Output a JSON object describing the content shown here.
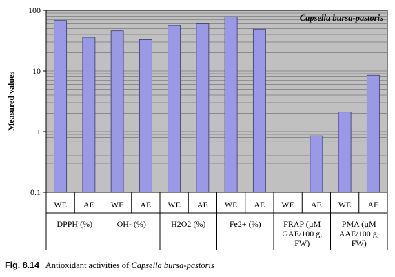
{
  "chart_data": {
    "type": "bar",
    "title": "Capsella bursa-pastoris",
    "ylabel": "Measured values",
    "yscale": "log",
    "ylim": [
      0.1,
      100
    ],
    "yticks": [
      "0.1",
      "1",
      "10",
      "100"
    ],
    "grid": true,
    "colors": {
      "bar": "#9a99e6",
      "plot_bg": "#c0c0c0"
    },
    "groups": [
      {
        "label": "DPPH (%)",
        "categories": [
          "WE",
          "AE"
        ],
        "values": [
          68,
          36
        ]
      },
      {
        "label": "OH- (%)",
        "categories": [
          "WE",
          "AE"
        ],
        "values": [
          46,
          33
        ]
      },
      {
        "label": "H2O2 (%)",
        "categories": [
          "WE",
          "AE"
        ],
        "values": [
          56,
          60
        ]
      },
      {
        "label": "Fe2+ (%)",
        "categories": [
          "WE",
          "AE"
        ],
        "values": [
          78,
          49
        ]
      },
      {
        "label": "FRAP (µM GAE/100 g, FW)",
        "categories": [
          "WE",
          "AE"
        ],
        "values": [
          null,
          0.85
        ]
      },
      {
        "label": "PMA (µM AAE/100 g, FW)",
        "categories": [
          "WE",
          "AE"
        ],
        "values": [
          2.1,
          8.5
        ]
      }
    ]
  },
  "caption": {
    "figure": "Fig. 8.14",
    "text": "Antioxidant activities of",
    "species": "Capsella bursa-pastoris"
  }
}
